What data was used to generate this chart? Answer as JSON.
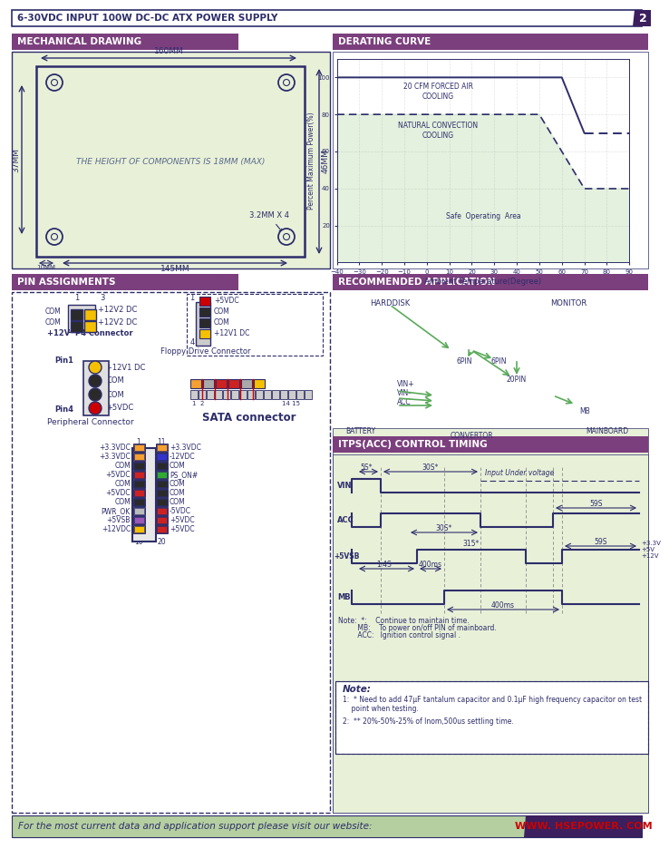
{
  "title_text": "6-30VDC INPUT 100W DC-DC ATX POWER SUPPLY",
  "page_number": "2",
  "purple": "#7b3f7d",
  "dark_purple": "#3b1f5e",
  "light_green_bg": "#e8f0d8",
  "section_label_color": "#FFFFFF",
  "footer_bg": "#b5cfa0",
  "footer_text": "For the most current data and application support please visit our website:",
  "footer_website": "WWW. HSEPOWER. COM",
  "footer_website_color": "#cc0000",
  "mech_title": "MECHANICAL DRAWING",
  "derating_title": "DERATING CURVE",
  "pin_title": "PIN ASSIGNMENTS",
  "app_title": "RECOMMENDED APPLICATION",
  "timing_title": "ITPS(ACC) CONTROL TIMING",
  "mech_width": "160MM",
  "mech_bottom": "145MM",
  "mech_side_right": "46MM",
  "mech_side_left": "37MM",
  "mech_offset": "10MM",
  "mech_hole": "3.2MM X 4",
  "mech_text": "THE HEIGHT OF COMPONENTS IS 18MM (MAX)",
  "derating_xlabel": "Ambient Temperature(Degree)",
  "derating_ylabel": "Percent Maximum Power(%)",
  "derating_label1": "20 CFM FORCED AIR\nCOOLING",
  "derating_label2": "NATURAL CONVECTION\nCOOLING",
  "derating_label3": "Safe  Operating  Area",
  "note_text1": "1:  * Need to add 47μF tantalum capacitor and 0.1μF high frequency capacitor on test\n    point when testing.",
  "note_text2": "2:  ** 20%-50%-25% of Inom,500us settling time.",
  "timing_vin": "VIN",
  "timing_acc": "ACC",
  "timing_5vsb": "+5VSB",
  "timing_mb": "MB",
  "t1": "5S*",
  "t2": "30S*",
  "t3": "59S",
  "t4": "1.4S",
  "t5": "400ms",
  "t6": "315*",
  "t7": "400ms",
  "t8": "59S",
  "t9": "+3.3V\n+5V\n+12V",
  "input_under": "Input Under voltage",
  "timing_note1": "Note:  *:    Continue to maintain time.",
  "timing_note2": "         MB:    To power on/off PIN of mainboard.",
  "timing_note3": "         ACC:   Ignition control signal ."
}
